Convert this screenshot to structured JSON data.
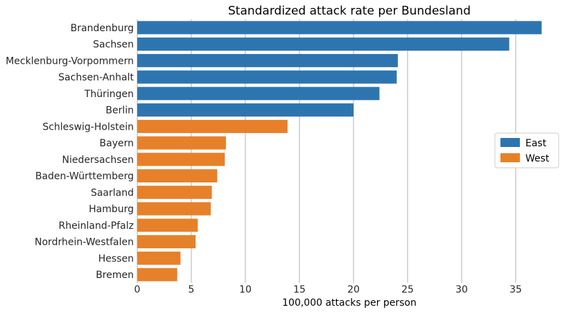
{
  "chart_data": {
    "type": "bar",
    "orientation": "horizontal",
    "title": "Standardized attack rate per Bundesland",
    "xlabel": "100,000 attacks per person",
    "ylabel": "",
    "xlim": [
      0,
      37.5
    ],
    "xticks": [
      0,
      5,
      10,
      15,
      20,
      25,
      30,
      35
    ],
    "grid": "x",
    "legend_position": "right",
    "categories": [
      "Brandenburg",
      "Sachsen",
      "Mecklenburg-Vorpommern",
      "Sachsen-Anhalt",
      "Thüringen",
      "Berlin",
      "Schleswig-Holstein",
      "Bayern",
      "Niedersachsen",
      "Baden-Württemberg",
      "Saarland",
      "Hamburg",
      "Rheinland-Pfalz",
      "Nordrhein-Westfalen",
      "Hessen",
      "Bremen"
    ],
    "values": [
      37.4,
      34.4,
      24.1,
      24.0,
      22.4,
      20.0,
      13.9,
      8.2,
      8.1,
      7.4,
      6.9,
      6.8,
      5.6,
      5.4,
      4.0,
      3.7
    ],
    "groups": [
      "East",
      "East",
      "East",
      "East",
      "East",
      "East",
      "West",
      "West",
      "West",
      "West",
      "West",
      "West",
      "West",
      "West",
      "West",
      "West"
    ],
    "series": [
      {
        "name": "East",
        "color": "#2e75b0"
      },
      {
        "name": "West",
        "color": "#e6812a"
      }
    ]
  }
}
